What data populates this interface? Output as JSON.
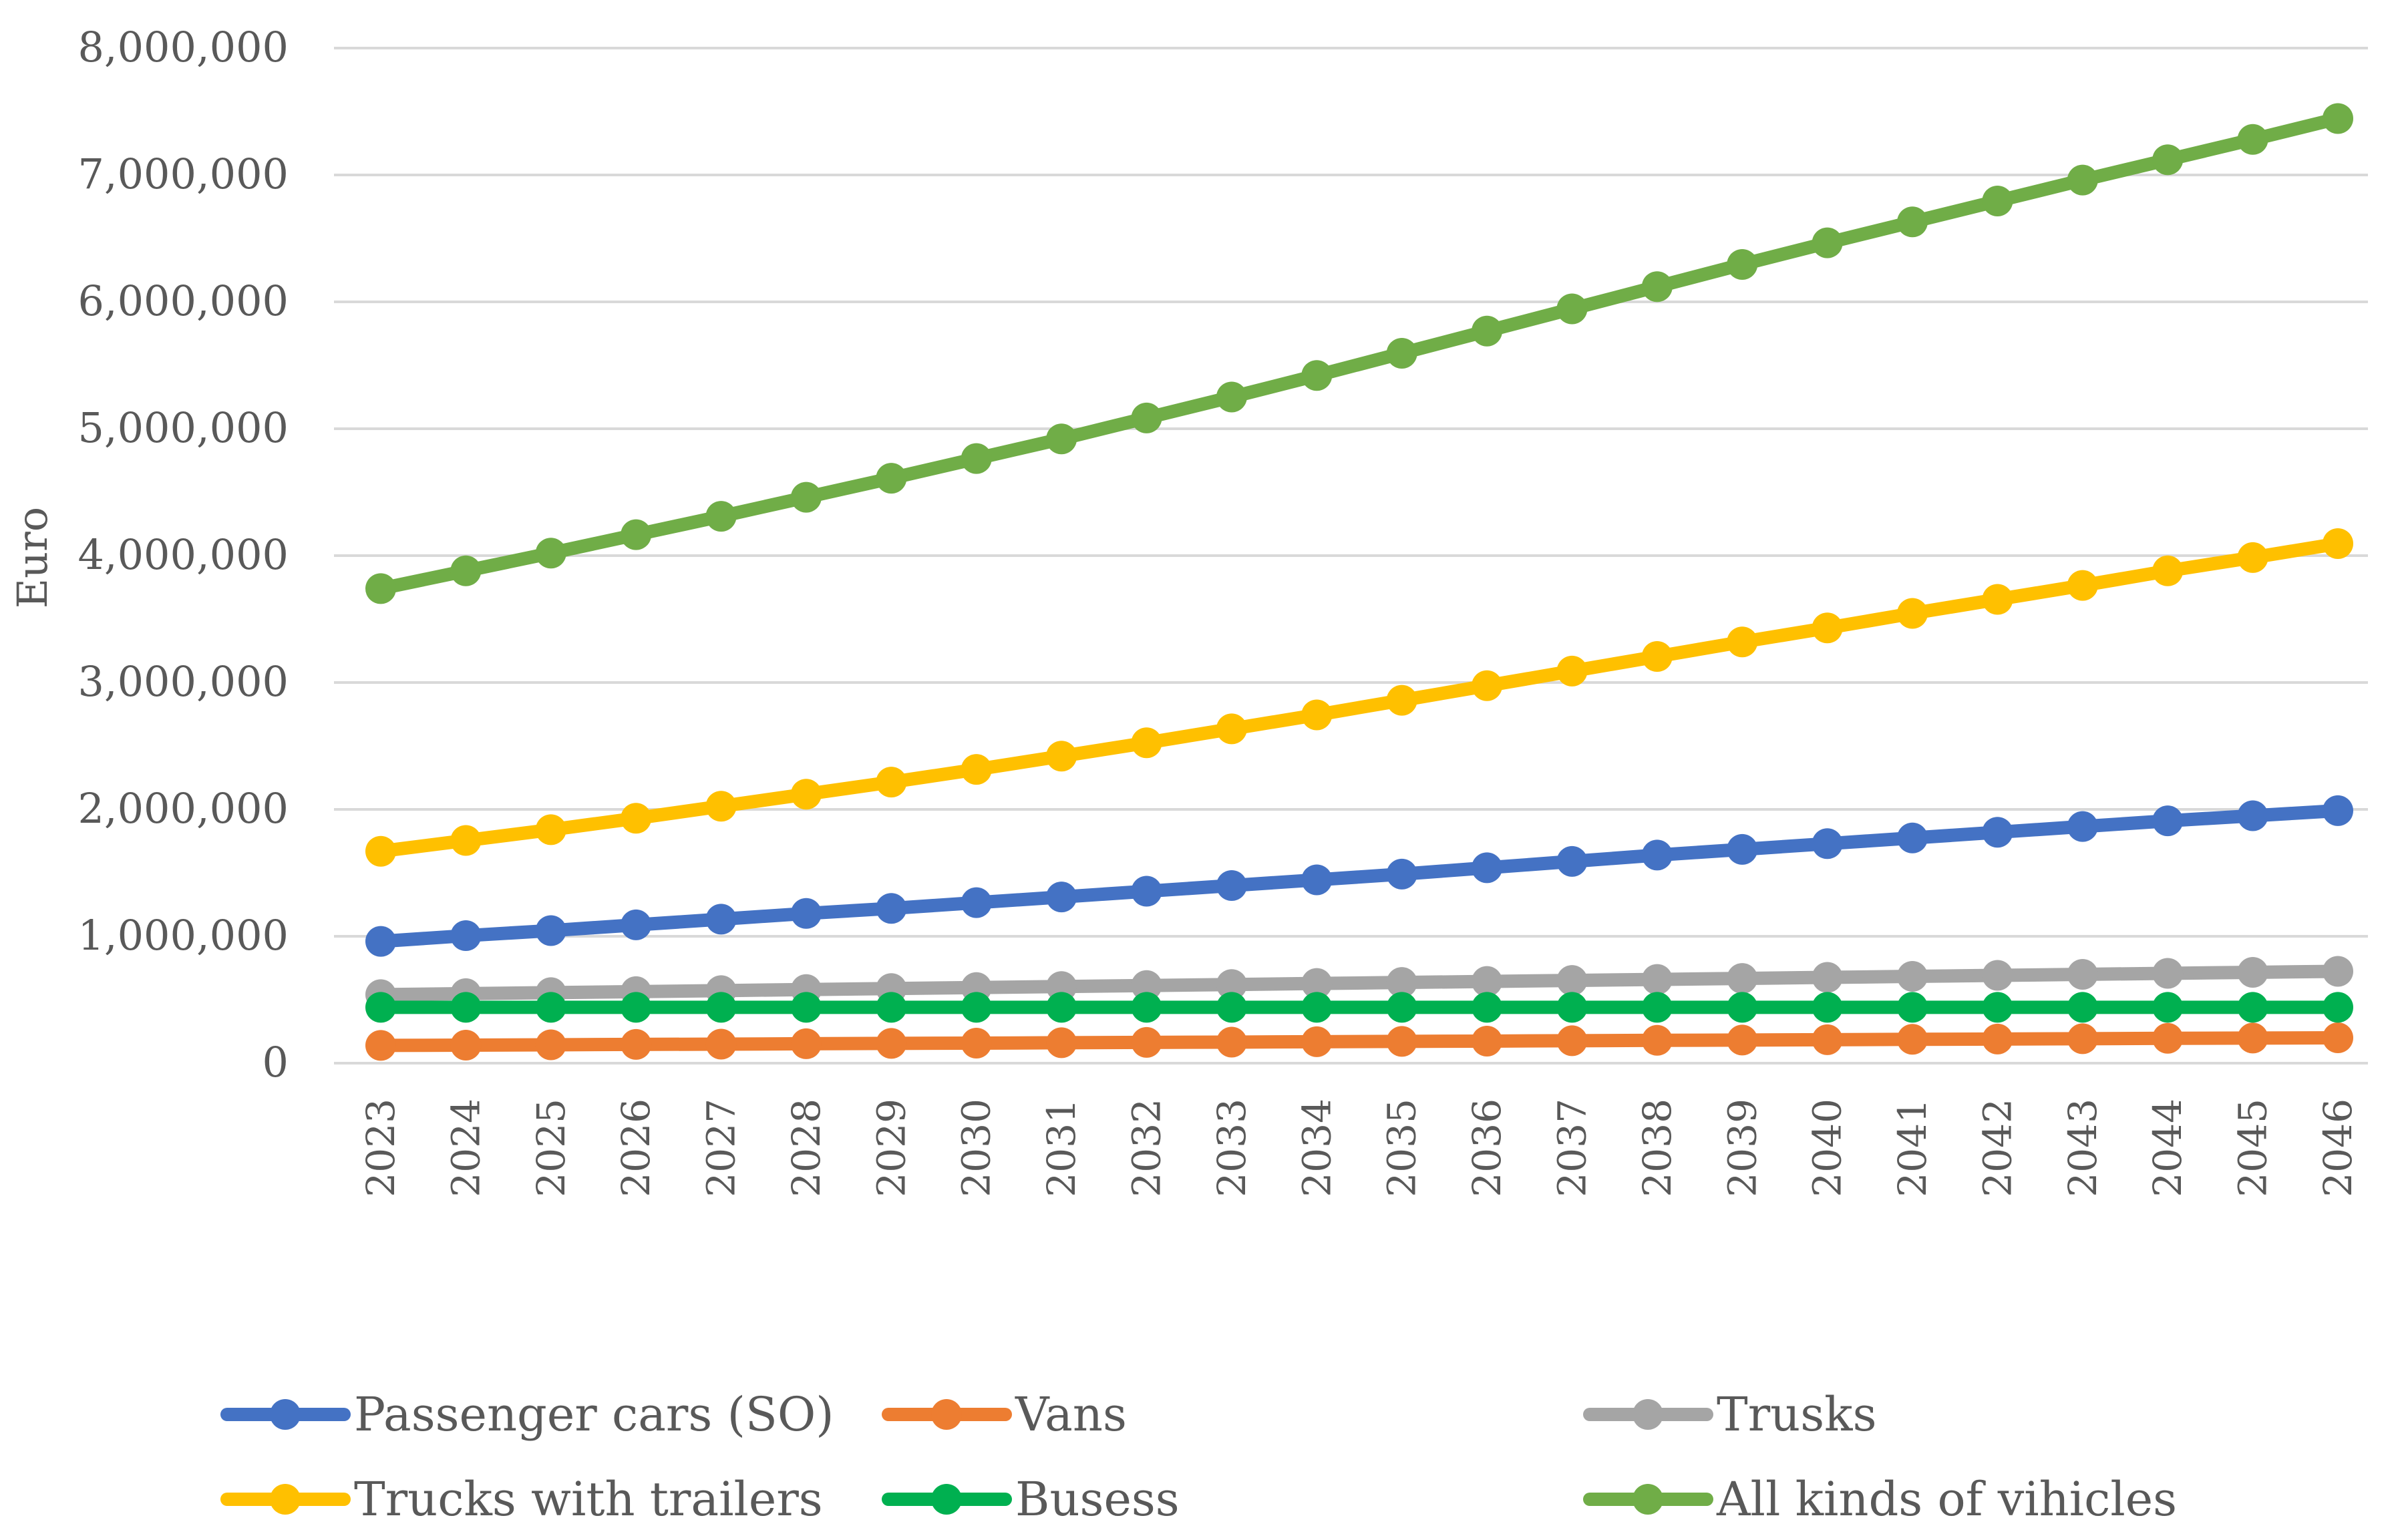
{
  "chart_data": {
    "type": "line",
    "title": "",
    "xlabel": "",
    "ylabel": "Euro",
    "ylim": [
      0,
      8000000
    ],
    "y_ticks": [
      0,
      1000000,
      2000000,
      3000000,
      4000000,
      5000000,
      6000000,
      7000000,
      8000000
    ],
    "y_tick_labels": [
      "0",
      "1,000,000",
      "2,000,000",
      "3,000,000",
      "4,000,000",
      "5,000,000",
      "6,000,000",
      "7,000,000",
      "8,000,000"
    ],
    "grid": true,
    "legend_position": "bottom",
    "categories": [
      "2023",
      "2024",
      "2025",
      "2026",
      "2027",
      "2028",
      "2029",
      "2030",
      "2031",
      "2032",
      "2033",
      "2034",
      "2035",
      "2036",
      "2037",
      "2038",
      "2039",
      "2040",
      "2041",
      "2042",
      "2043",
      "2044",
      "2045",
      "2046"
    ],
    "series": [
      {
        "name": "Passenger cars (SO)",
        "color": "#4472C4",
        "values": [
          960000,
          1005000,
          1045000,
          1090000,
          1135000,
          1180000,
          1220000,
          1265000,
          1310000,
          1355000,
          1400000,
          1445000,
          1490000,
          1540000,
          1590000,
          1640000,
          1685000,
          1730000,
          1775000,
          1820000,
          1865000,
          1910000,
          1950000,
          1990000
        ]
      },
      {
        "name": "Vans",
        "color": "#ED7D31",
        "values": [
          140000,
          142000,
          145000,
          148000,
          150000,
          153000,
          156000,
          158000,
          161000,
          164000,
          166000,
          169000,
          172000,
          174000,
          177000,
          180000,
          182000,
          185000,
          188000,
          190000,
          193000,
          196000,
          198000,
          200000
        ]
      },
      {
        "name": "Trusks",
        "color": "#A5A5A5",
        "values": [
          540000,
          548000,
          556000,
          564000,
          572000,
          580000,
          588000,
          596000,
          604000,
          612000,
          620000,
          628000,
          636000,
          644000,
          652000,
          660000,
          668000,
          676000,
          684000,
          692000,
          700000,
          708000,
          716000,
          724000
        ]
      },
      {
        "name": "Trucks with trailers",
        "color": "#FFC000",
        "values": [
          1670000,
          1755000,
          1840000,
          1930000,
          2025000,
          2120000,
          2215000,
          2315000,
          2420000,
          2525000,
          2635000,
          2745000,
          2860000,
          2975000,
          3090000,
          3205000,
          3320000,
          3430000,
          3545000,
          3655000,
          3765000,
          3880000,
          3985000,
          4095000
        ]
      },
      {
        "name": "Busess",
        "color": "#00B050",
        "values": [
          440000,
          440000,
          440000,
          440000,
          440000,
          440000,
          440000,
          440000,
          440000,
          440000,
          440000,
          440000,
          440000,
          440000,
          440000,
          440000,
          440000,
          440000,
          440000,
          440000,
          440000,
          440000,
          440000,
          440000
        ]
      },
      {
        "name": "All kinds of vihicles",
        "color": "#70AD47",
        "values": [
          3740000,
          3880000,
          4020000,
          4165000,
          4310000,
          4460000,
          4610000,
          4765000,
          4920000,
          5085000,
          5250000,
          5420000,
          5595000,
          5770000,
          5945000,
          6120000,
          6295000,
          6465000,
          6630000,
          6795000,
          6960000,
          7120000,
          7280000,
          7445000
        ]
      }
    ]
  }
}
